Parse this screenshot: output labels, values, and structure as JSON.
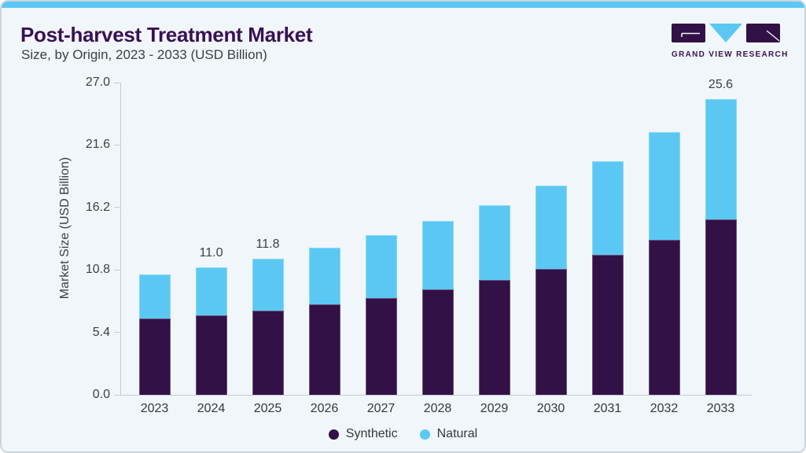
{
  "header": {
    "title": "Post-harvest Treatment Market",
    "subtitle": "Size, by Origin, 2023 - 2033 (USD Billion)"
  },
  "logo": {
    "text": "GRAND VIEW RESEARCH"
  },
  "colors": {
    "accent_blue": "#5bc8f3",
    "brand_purple": "#321147",
    "title_purple": "#3b1053",
    "card_background": "#f0f6fa",
    "axis_gray": "#c6ccd2"
  },
  "chart_data": {
    "type": "bar",
    "stacked": true,
    "title": "Post-harvest Treatment Market Size, by Origin, 2023 - 2033 (USD Billion)",
    "xlabel": "",
    "ylabel": "Market Size (USD Billion)",
    "ylim": [
      0,
      27
    ],
    "grid": false,
    "legend_position": "bottom",
    "categories": [
      "2023",
      "2024",
      "2025",
      "2026",
      "2027",
      "2028",
      "2029",
      "2030",
      "2031",
      "2032",
      "2033"
    ],
    "series": [
      {
        "name": "Synthetic",
        "color": "#321147",
        "values": [
          6.6,
          6.9,
          7.3,
          7.8,
          8.4,
          9.1,
          9.9,
          10.9,
          12.1,
          13.4,
          15.2
        ]
      },
      {
        "name": "Natural",
        "color": "#5bc8f3",
        "values": [
          3.8,
          4.1,
          4.5,
          4.9,
          5.4,
          5.9,
          6.5,
          7.2,
          8.1,
          9.3,
          10.4
        ]
      }
    ],
    "totals": [
      10.4,
      11.0,
      11.8,
      12.7,
      13.8,
      15.0,
      16.4,
      18.1,
      20.2,
      22.7,
      25.6
    ],
    "bar_labels": [
      "",
      "11.0",
      "11.8",
      "",
      "",
      "",
      "",
      "",
      "",
      "",
      "25.6"
    ],
    "yticks": [
      {
        "value": 0.0,
        "label": "0.0"
      },
      {
        "value": 5.4,
        "label": "5.4"
      },
      {
        "value": 10.8,
        "label": "10.8"
      },
      {
        "value": 16.2,
        "label": "16.2"
      },
      {
        "value": 21.6,
        "label": "21.6"
      },
      {
        "value": 27.0,
        "label": "27.0"
      }
    ]
  }
}
